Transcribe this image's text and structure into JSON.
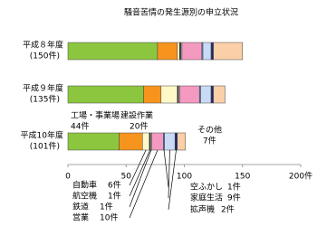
{
  "chart_data": {
    "type": "stacked-barh",
    "title": "騒音苦情の発生源別の申立状況",
    "categories": [
      "平成８年度",
      "平成９年度",
      "平成10年度"
    ],
    "category_sublabels": [
      "(150件)",
      "(135件)",
      "(101件)"
    ],
    "series": [
      {
        "name": "工場・事業場",
        "color": "#8cc63f",
        "values": [
          77,
          65,
          44
        ],
        "value_labels": [
          null,
          null,
          "44件"
        ]
      },
      {
        "name": "建設作業",
        "color": "#f7941d",
        "values": [
          17,
          15,
          20
        ],
        "value_labels": [
          null,
          null,
          "20件"
        ]
      },
      {
        "name": "自動車",
        "color": "#fff8c8",
        "values": [
          2,
          14,
          6
        ],
        "value_labels": [
          null,
          null,
          "6件"
        ]
      },
      {
        "name": "航空機",
        "color": "#222222",
        "values": [
          1,
          1,
          1
        ],
        "value_labels": [
          null,
          null,
          "1件"
        ]
      },
      {
        "name": "鉄道",
        "color": "#c0c0c0",
        "values": [
          1,
          1,
          1
        ],
        "value_labels": [
          null,
          null,
          "1件"
        ]
      },
      {
        "name": "営業",
        "color": "#f49ac1",
        "values": [
          17,
          17,
          10
        ],
        "value_labels": [
          null,
          null,
          "10件"
        ]
      },
      {
        "name": "空ふかし",
        "color": "#4f7fc0",
        "values": [
          1,
          1,
          1
        ],
        "value_labels": [
          null,
          null,
          "1件"
        ]
      },
      {
        "name": "家庭生活",
        "color": "#c9daf5",
        "values": [
          7,
          9,
          9
        ],
        "value_labels": [
          null,
          null,
          "9件"
        ]
      },
      {
        "name": "拡声機",
        "color": "#1f2a6b",
        "values": [
          2,
          2,
          2
        ],
        "value_labels": [
          null,
          null,
          "2件"
        ]
      },
      {
        "name": "その他",
        "color": "#fbd0a8",
        "values": [
          25,
          10,
          7
        ],
        "value_labels": [
          null,
          null,
          "7件"
        ]
      }
    ],
    "xlim": [
      0,
      200
    ],
    "xticks": [
      0,
      50,
      100,
      150,
      {
        "value": 200,
        "label": "200件"
      }
    ]
  }
}
